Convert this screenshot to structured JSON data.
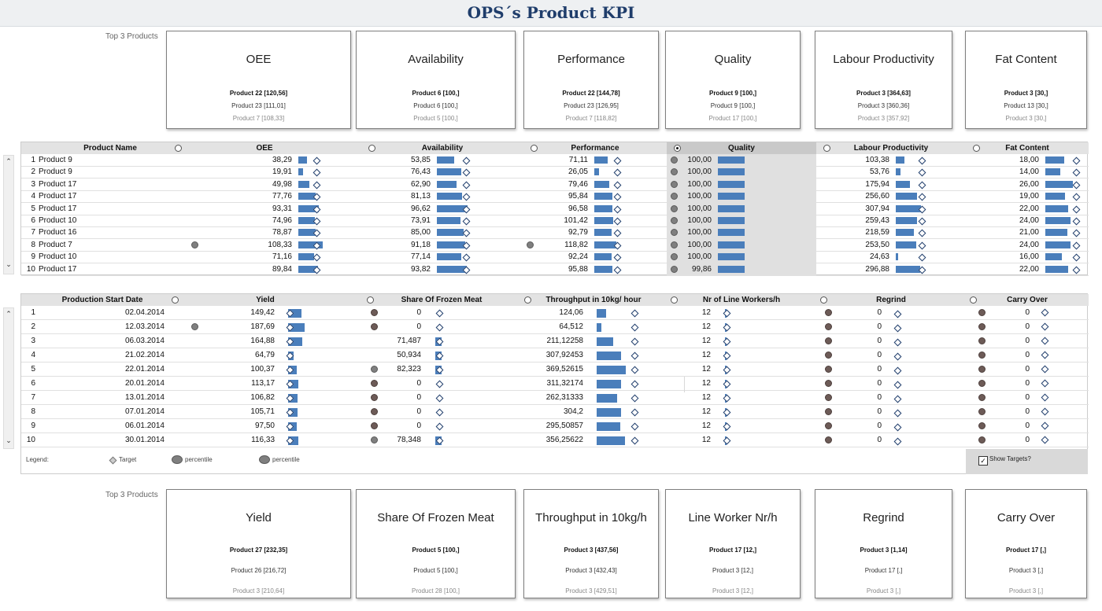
{
  "title": "OPS´s Product KPI",
  "top_label": "Top 3 Products",
  "kpi_top": [
    {
      "title": "OEE",
      "first": "Product 22 [120,56]",
      "second": "Product 23 [111,01]",
      "third": "Product 7 [108,33]"
    },
    {
      "title": "Availability",
      "first": "Product 6 [100,]",
      "second": "Product 6 [100,]",
      "third": "Product 5 [100,]"
    },
    {
      "title": "Performance",
      "first": "Product 22 [144,78]",
      "second": "Product 23 [126,95]",
      "third": "Product 7 [118,82]"
    },
    {
      "title": "Quality",
      "first": "Product 9 [100,]",
      "second": "Product 9 [100,]",
      "third": "Product 17 [100,]"
    },
    {
      "title": "Labour Productivity",
      "first": "Product 3 [364,63]",
      "second": "Product 3 [360,36]",
      "third": "Product 3 [357,92]"
    },
    {
      "title": "Fat Content",
      "first": "Product 3 [30,]",
      "second": "Product 13 [30,]",
      "third": "Product 3 [30,]"
    }
  ],
  "table1": {
    "headers": [
      "Product Name",
      "OEE",
      "Availability",
      "Performance",
      "Quality",
      "Labour Productivity",
      "Fat Content"
    ],
    "rows": [
      {
        "n": "1",
        "name": "Product 9",
        "oee": "38,29",
        "av": "53,85",
        "pf": "71,11",
        "q": "100,00",
        "lp": "103,38",
        "fc": "18,00"
      },
      {
        "n": "2",
        "name": "Product 9",
        "oee": "19,91",
        "av": "76,43",
        "pf": "26,05",
        "q": "100,00",
        "lp": "53,76",
        "fc": "14,00"
      },
      {
        "n": "3",
        "name": "Product 17",
        "oee": "49,98",
        "av": "62,90",
        "pf": "79,46",
        "q": "100,00",
        "lp": "175,94",
        "fc": "26,00"
      },
      {
        "n": "4",
        "name": "Product 17",
        "oee": "77,76",
        "av": "81,13",
        "pf": "95,84",
        "q": "100,00",
        "lp": "256,60",
        "fc": "19,00"
      },
      {
        "n": "5",
        "name": "Product 17",
        "oee": "93,31",
        "av": "96,62",
        "pf": "96,58",
        "q": "100,00",
        "lp": "307,94",
        "fc": "22,00"
      },
      {
        "n": "6",
        "name": "Product 10",
        "oee": "74,96",
        "av": "73,91",
        "pf": "101,42",
        "q": "100,00",
        "lp": "259,43",
        "fc": "24,00"
      },
      {
        "n": "7",
        "name": "Product 16",
        "oee": "78,87",
        "av": "85,00",
        "pf": "92,79",
        "q": "100,00",
        "lp": "218,59",
        "fc": "21,00"
      },
      {
        "n": "8",
        "name": "Product 7",
        "oee": "108,33",
        "av": "91,18",
        "pf": "118,82",
        "q": "100,00",
        "lp": "253,50",
        "fc": "24,00"
      },
      {
        "n": "9",
        "name": "Product 10",
        "oee": "71,16",
        "av": "77,14",
        "pf": "92,24",
        "q": "100,00",
        "lp": "24,63",
        "fc": "16,00"
      },
      {
        "n": "10",
        "name": "Product 17",
        "oee": "89,84",
        "av": "93,82",
        "pf": "95,88",
        "q": "99,86",
        "lp": "296,88",
        "fc": "22,00"
      }
    ]
  },
  "table2": {
    "headers": [
      "Production Start Date",
      "Yield",
      "Share Of Frozen Meat",
      "Throughput in 10kg/ hour",
      "Nr of Line Workers/h",
      "Regrind",
      "Carry Over"
    ],
    "rows": [
      {
        "n": "1",
        "date": "02.04.2014",
        "yield": "149,42",
        "sfm": "0",
        "tp": "124,06",
        "lw": "12",
        "rg": "0",
        "co": "0"
      },
      {
        "n": "2",
        "date": "12.03.2014",
        "yield": "187,69",
        "sfm": "0",
        "tp": "64,512",
        "lw": "12",
        "rg": "0",
        "co": "0"
      },
      {
        "n": "3",
        "date": "06.03.2014",
        "yield": "164,88",
        "sfm": "71,487",
        "tp": "211,12258",
        "lw": "12",
        "rg": "0",
        "co": "0"
      },
      {
        "n": "4",
        "date": "21.02.2014",
        "yield": "64,79",
        "sfm": "50,934",
        "tp": "307,92453",
        "lw": "12",
        "rg": "0",
        "co": "0"
      },
      {
        "n": "5",
        "date": "22.01.2014",
        "yield": "100,37",
        "sfm": "82,323",
        "tp": "369,52615",
        "lw": "12",
        "rg": "0",
        "co": "0"
      },
      {
        "n": "6",
        "date": "20.01.2014",
        "yield": "113,17",
        "sfm": "0",
        "tp": "311,32174",
        "lw": "12",
        "rg": "0",
        "co": "0"
      },
      {
        "n": "7",
        "date": "13.01.2014",
        "yield": "106,82",
        "sfm": "0",
        "tp": "262,31333",
        "lw": "12",
        "rg": "0",
        "co": "0"
      },
      {
        "n": "8",
        "date": "07.01.2014",
        "yield": "105,71",
        "sfm": "0",
        "tp": "304,2",
        "lw": "12",
        "rg": "0",
        "co": "0"
      },
      {
        "n": "9",
        "date": "06.01.2014",
        "yield": "97,50",
        "sfm": "0",
        "tp": "295,50857",
        "lw": "12",
        "rg": "0",
        "co": "0"
      },
      {
        "n": "10",
        "date": "30.01.2014",
        "yield": "116,33",
        "sfm": "78,348",
        "tp": "356,25622",
        "lw": "12",
        "rg": "0",
        "co": "0"
      }
    ]
  },
  "legend": {
    "label": "Legend:",
    "target": "Target",
    "p1": "percentile",
    "p2": "percentile"
  },
  "show_targets": {
    "label": "Show Targets?",
    "checked": true
  },
  "kpi_bottom": [
    {
      "title": "Yield",
      "first": "Product 27 [232,35]",
      "second": "Product 26 [216,72]",
      "third": "Product 3 [210,64]"
    },
    {
      "title": "Share Of Frozen Meat",
      "first": "Product 5 [100,]",
      "second": "Product 5 [100,]",
      "third": "Product 28 [100,]"
    },
    {
      "title": "Throughput in 10kg/h",
      "first": "Product 3 [437,56]",
      "second": "Product 3 [432,43]",
      "third": "Product 3 [429,51]"
    },
    {
      "title": "Line Worker Nr/h",
      "first": "Product 17 [12,]",
      "second": "Product 3 [12,]",
      "third": "Product 3 [12,]"
    },
    {
      "title": "Regrind",
      "first": "Product 3 [1,14]",
      "second": "Product 17 [,]",
      "third": "Product 3 [,]"
    },
    {
      "title": "Carry Over",
      "first": "Product 17 [,]",
      "second": "Product 3 [,]",
      "third": "Product 3 [,]"
    }
  ]
}
